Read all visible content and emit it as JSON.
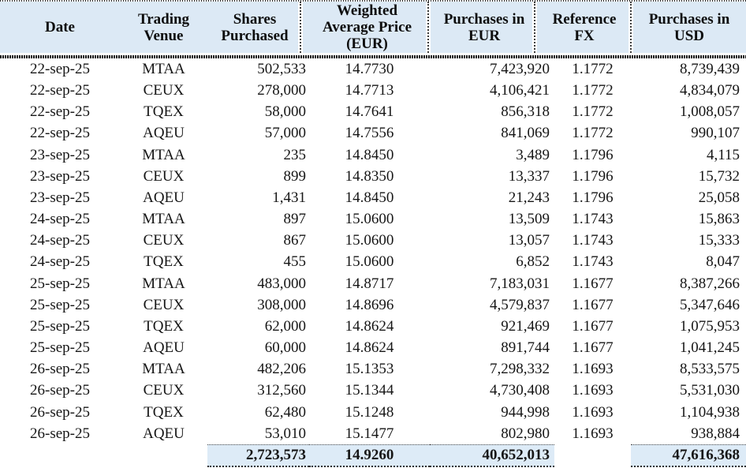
{
  "table": {
    "columns": [
      {
        "label": "Date"
      },
      {
        "label": "Trading\nVenue"
      },
      {
        "label": "Shares\nPurchased"
      },
      {
        "label": "Weighted\nAverage Price\n(EUR)"
      },
      {
        "label": "Purchases in\nEUR"
      },
      {
        "label": "Reference\nFX"
      },
      {
        "label": "Purchases in\nUSD"
      }
    ],
    "rows": [
      [
        "22-sep-25",
        "MTAA",
        "502,533",
        "14.7730",
        "7,423,920",
        "1.1772",
        "8,739,439"
      ],
      [
        "22-sep-25",
        "CEUX",
        "278,000",
        "14.7713",
        "4,106,421",
        "1.1772",
        "4,834,079"
      ],
      [
        "22-sep-25",
        "TQEX",
        "58,000",
        "14.7641",
        "856,318",
        "1.1772",
        "1,008,057"
      ],
      [
        "22-sep-25",
        "AQEU",
        "57,000",
        "14.7556",
        "841,069",
        "1.1772",
        "990,107"
      ],
      [
        "23-sep-25",
        "MTAA",
        "235",
        "14.8450",
        "3,489",
        "1.1796",
        "4,115"
      ],
      [
        "23-sep-25",
        "CEUX",
        "899",
        "14.8350",
        "13,337",
        "1.1796",
        "15,732"
      ],
      [
        "23-sep-25",
        "AQEU",
        "1,431",
        "14.8450",
        "21,243",
        "1.1796",
        "25,058"
      ],
      [
        "24-sep-25",
        "MTAA",
        "897",
        "15.0600",
        "13,509",
        "1.1743",
        "15,863"
      ],
      [
        "24-sep-25",
        "CEUX",
        "867",
        "15.0600",
        "13,057",
        "1.1743",
        "15,333"
      ],
      [
        "24-sep-25",
        "TQEX",
        "455",
        "15.0600",
        "6,852",
        "1.1743",
        "8,047"
      ],
      [
        "25-sep-25",
        "MTAA",
        "483,000",
        "14.8717",
        "7,183,031",
        "1.1677",
        "8,387,266"
      ],
      [
        "25-sep-25",
        "CEUX",
        "308,000",
        "14.8696",
        "4,579,837",
        "1.1677",
        "5,347,646"
      ],
      [
        "25-sep-25",
        "TQEX",
        "62,000",
        "14.8624",
        "921,469",
        "1.1677",
        "1,075,953"
      ],
      [
        "25-sep-25",
        "AQEU",
        "60,000",
        "14.8624",
        "891,744",
        "1.1677",
        "1,041,245"
      ],
      [
        "26-sep-25",
        "MTAA",
        "482,206",
        "15.1353",
        "7,298,332",
        "1.1693",
        "8,533,575"
      ],
      [
        "26-sep-25",
        "CEUX",
        "312,560",
        "15.1344",
        "4,730,408",
        "1.1693",
        "5,531,030"
      ],
      [
        "26-sep-25",
        "TQEX",
        "62,480",
        "15.1248",
        "944,998",
        "1.1693",
        "1,104,938"
      ],
      [
        "26-sep-25",
        "AQEU",
        "53,010",
        "15.1477",
        "802,980",
        "1.1693",
        "938,884"
      ]
    ],
    "totals": {
      "shares_purchased": "2,723,573",
      "weighted_average_price_eur": "14.9260",
      "purchases_in_eur": "40,652,013",
      "reference_fx": "",
      "purchases_in_usd": "47,616,368"
    }
  },
  "colors": {
    "header_bg": "#dce9f5",
    "totals_bg": "#ddebf7"
  }
}
